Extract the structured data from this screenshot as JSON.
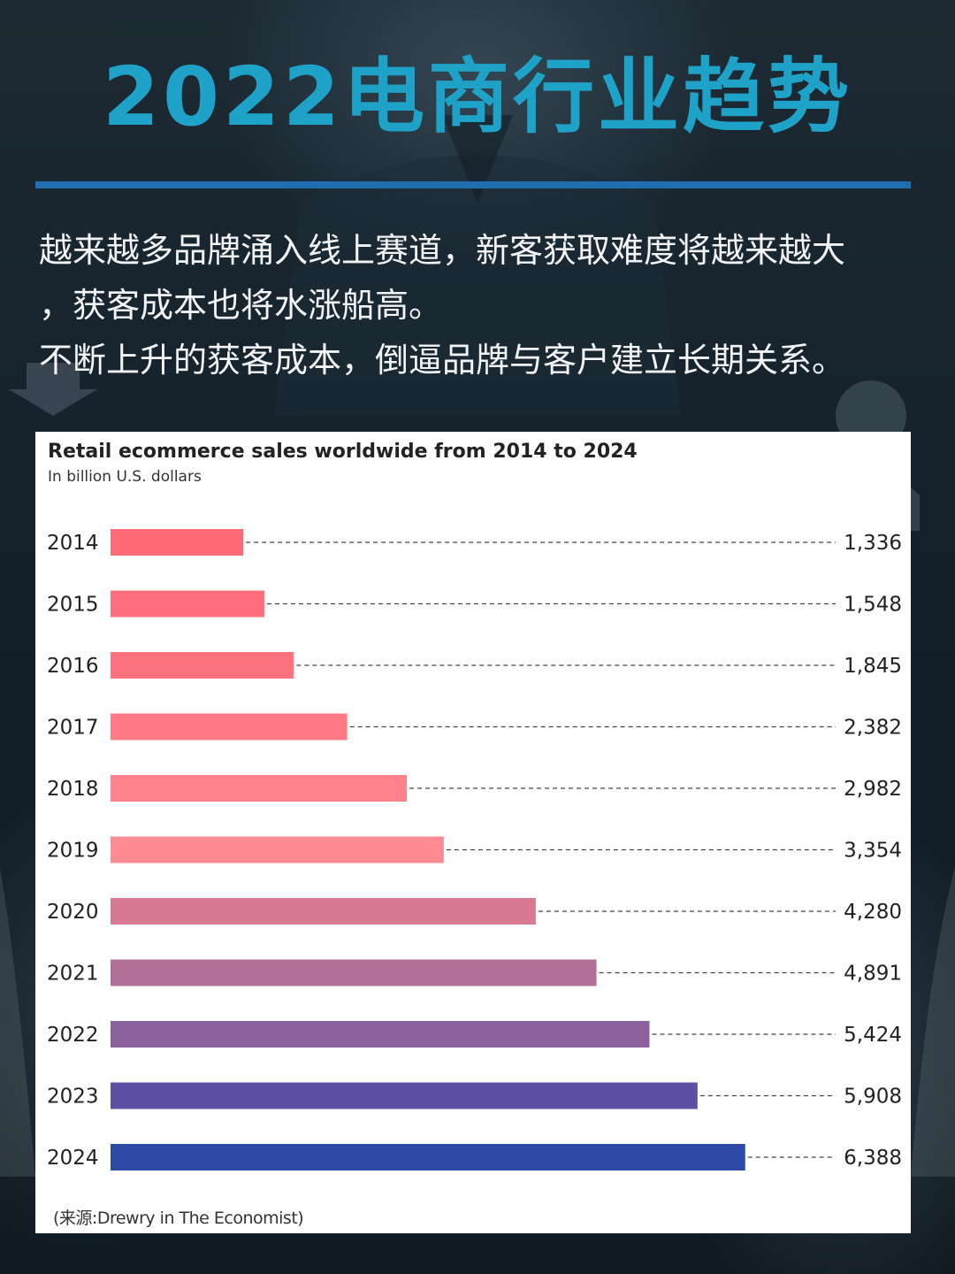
{
  "header": {
    "title": "2022电商行业趋势"
  },
  "intro": {
    "line1": "越来越多品牌涌入线上赛道，新客获取难度将越来越大",
    "line2": "，获客成本也将水涨船高。",
    "line3": "不断上升的获客成本，倒逼品牌与客户建立长期关系。"
  },
  "chart_data": {
    "type": "bar",
    "orientation": "horizontal",
    "title": "Retail ecommerce sales worldwide from 2014 to 2024",
    "subtitle": "In billion U.S. dollars",
    "categories": [
      "2014",
      "2015",
      "2016",
      "2017",
      "2018",
      "2019",
      "2020",
      "2021",
      "2022",
      "2023",
      "2024"
    ],
    "values": [
      1336,
      1548,
      1845,
      2382,
      2982,
      3354,
      4280,
      4891,
      5424,
      5908,
      6388
    ],
    "value_labels": [
      "1,336",
      "1,548",
      "1,845",
      "2,382",
      "2,982",
      "3,354",
      "4,280",
      "4,891",
      "5,424",
      "5,908",
      "6,388"
    ],
    "colors": [
      "#ff6a76",
      "#ff6e7a",
      "#ff737f",
      "#ff7a85",
      "#ff818c",
      "#ff8a94",
      "#d97a92",
      "#b07097",
      "#8a609d",
      "#5d4fa3",
      "#2f4aa6"
    ],
    "xlim": [
      0,
      8900
    ],
    "grid": false,
    "legend": "none",
    "source": "(来源:Drewry in The Economist)"
  }
}
